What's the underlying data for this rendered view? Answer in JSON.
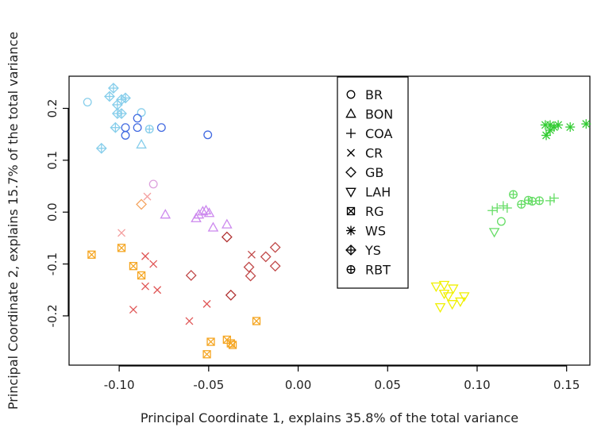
{
  "chart_data": {
    "type": "scatter",
    "title": "",
    "xlabel": "Principal Coordinate 1, explains 35.8% of the total variance",
    "ylabel": "Principal Coordinate 2, explains 15.7%  of the total variance",
    "xlim": [
      -0.128,
      0.163
    ],
    "ylim": [
      -0.295,
      0.262
    ],
    "xticks": [
      -0.1,
      -0.05,
      0.0,
      0.05,
      0.1,
      0.15
    ],
    "xtick_labels": [
      "-0.10",
      "-0.05",
      "0.00",
      "0.05",
      "0.10",
      "0.15"
    ],
    "yticks": [
      -0.2,
      -0.1,
      0.0,
      0.1,
      0.2
    ],
    "ytick_labels": [
      "-0.2",
      "-0.1",
      "0.0",
      "0.1",
      "0.2"
    ],
    "grid": false,
    "legend_position": "top-center",
    "series": [
      {
        "name": "BR",
        "shape": "circle",
        "points": [
          {
            "x": -0.1177,
            "y": 0.212,
            "color": "#87ceeb"
          },
          {
            "x": -0.0876,
            "y": 0.192,
            "color": "#87ceeb"
          },
          {
            "x": -0.0809,
            "y": 0.054,
            "color": "#dda0dd"
          },
          {
            "x": -0.0965,
            "y": 0.163,
            "color": "#4169e1"
          },
          {
            "x": -0.0965,
            "y": 0.148,
            "color": "#4169e1"
          },
          {
            "x": -0.0898,
            "y": 0.181,
            "color": "#4169e1"
          },
          {
            "x": -0.0898,
            "y": 0.163,
            "color": "#4169e1"
          },
          {
            "x": -0.0764,
            "y": 0.163,
            "color": "#4169e1"
          },
          {
            "x": -0.0505,
            "y": 0.149,
            "color": "#4169e1"
          },
          {
            "x": 0.1135,
            "y": -0.018,
            "color": "#66dd66"
          }
        ]
      },
      {
        "name": "BON",
        "shape": "triangle-up",
        "points": [
          {
            "x": -0.0876,
            "y": 0.13,
            "color": "#87ceeb"
          },
          {
            "x": -0.0742,
            "y": -0.005,
            "color": "#cc88ee"
          },
          {
            "x": -0.057,
            "y": -0.012,
            "color": "#cc88ee"
          },
          {
            "x": -0.0555,
            "y": -0.005,
            "color": "#cc88ee"
          },
          {
            "x": -0.0533,
            "y": 0.001,
            "color": "#cc88ee"
          },
          {
            "x": -0.0515,
            "y": 0.003,
            "color": "#cc88ee"
          },
          {
            "x": -0.0497,
            "y": -0.002,
            "color": "#cc88ee"
          },
          {
            "x": -0.0475,
            "y": -0.03,
            "color": "#cc88ee"
          },
          {
            "x": -0.0398,
            "y": -0.024,
            "color": "#cc88ee"
          }
        ]
      },
      {
        "name": "COA",
        "shape": "plus",
        "points": [
          {
            "x": 0.1085,
            "y": 0.003,
            "color": "#66dd66"
          },
          {
            "x": 0.1112,
            "y": 0.008,
            "color": "#66dd66"
          },
          {
            "x": 0.1146,
            "y": 0.012,
            "color": "#66dd66"
          },
          {
            "x": 0.1168,
            "y": 0.008,
            "color": "#66dd66"
          },
          {
            "x": 0.1408,
            "y": 0.022,
            "color": "#66dd66"
          },
          {
            "x": 0.143,
            "y": 0.027,
            "color": "#66dd66"
          }
        ]
      },
      {
        "name": "CR",
        "shape": "cross",
        "points": [
          {
            "x": -0.0987,
            "y": -0.04,
            "color": "#f4a0a0"
          },
          {
            "x": -0.0854,
            "y": -0.085,
            "color": "#e05555"
          },
          {
            "x": -0.0809,
            "y": -0.1,
            "color": "#e05555"
          },
          {
            "x": -0.0854,
            "y": -0.143,
            "color": "#e05555"
          },
          {
            "x": -0.0787,
            "y": -0.15,
            "color": "#e05555"
          },
          {
            "x": -0.0921,
            "y": -0.188,
            "color": "#e05555"
          },
          {
            "x": -0.0608,
            "y": -0.21,
            "color": "#e05555"
          },
          {
            "x": -0.051,
            "y": -0.177,
            "color": "#e05555"
          },
          {
            "x": -0.026,
            "y": -0.082,
            "color": "#c04848"
          },
          {
            "x": -0.0843,
            "y": 0.03,
            "color": "#f4a0a0"
          }
        ]
      },
      {
        "name": "GB",
        "shape": "diamond",
        "points": [
          {
            "x": -0.0876,
            "y": 0.015,
            "color": "#f4a460"
          },
          {
            "x": -0.0598,
            "y": -0.122,
            "color": "#c04848"
          },
          {
            "x": -0.0398,
            "y": -0.048,
            "color": "#b03030"
          },
          {
            "x": -0.0376,
            "y": -0.16,
            "color": "#b03030"
          },
          {
            "x": -0.0275,
            "y": -0.106,
            "color": "#c04848"
          },
          {
            "x": -0.0266,
            "y": -0.123,
            "color": "#c04848"
          },
          {
            "x": -0.0181,
            "y": -0.086,
            "color": "#c04848"
          },
          {
            "x": -0.0128,
            "y": -0.068,
            "color": "#c04848"
          },
          {
            "x": -0.0128,
            "y": -0.104,
            "color": "#c04848"
          }
        ]
      },
      {
        "name": "LAH",
        "shape": "triangle-down",
        "points": [
          {
            "x": 0.0771,
            "y": -0.143,
            "color": "#f0f000"
          },
          {
            "x": 0.0816,
            "y": -0.14,
            "color": "#f0f000"
          },
          {
            "x": 0.0866,
            "y": -0.147,
            "color": "#f0f000"
          },
          {
            "x": 0.0816,
            "y": -0.157,
            "color": "#f0f000"
          },
          {
            "x": 0.0839,
            "y": -0.162,
            "color": "#f0f000"
          },
          {
            "x": 0.0928,
            "y": -0.162,
            "color": "#f0f000"
          },
          {
            "x": 0.0906,
            "y": -0.172,
            "color": "#f0f000"
          },
          {
            "x": 0.0861,
            "y": -0.177,
            "color": "#f0f000"
          },
          {
            "x": 0.0794,
            "y": -0.183,
            "color": "#f0f000"
          },
          {
            "x": 0.1096,
            "y": -0.038,
            "color": "#66dd66"
          }
        ]
      },
      {
        "name": "RG",
        "shape": "boxcross",
        "points": [
          {
            "x": -0.1154,
            "y": -0.082,
            "color": "#f5a623"
          },
          {
            "x": -0.0987,
            "y": -0.069,
            "color": "#f5a623"
          },
          {
            "x": -0.0921,
            "y": -0.104,
            "color": "#f5a623"
          },
          {
            "x": -0.0876,
            "y": -0.122,
            "color": "#f5a623"
          },
          {
            "x": -0.0233,
            "y": -0.21,
            "color": "#f5a623"
          },
          {
            "x": -0.0488,
            "y": -0.25,
            "color": "#f5a623"
          },
          {
            "x": -0.0398,
            "y": -0.246,
            "color": "#f5a623"
          },
          {
            "x": -0.0376,
            "y": -0.253,
            "color": "#f5a623"
          },
          {
            "x": -0.0366,
            "y": -0.256,
            "color": "#f5a623"
          },
          {
            "x": -0.051,
            "y": -0.274,
            "color": "#f5a623"
          }
        ]
      },
      {
        "name": "WS",
        "shape": "asterisk",
        "points": [
          {
            "x": 0.1381,
            "y": 0.168,
            "color": "#33cc33"
          },
          {
            "x": 0.1386,
            "y": 0.148,
            "color": "#33cc33"
          },
          {
            "x": 0.1408,
            "y": 0.158,
            "color": "#33cc33"
          },
          {
            "x": 0.1408,
            "y": 0.168,
            "color": "#33cc33"
          },
          {
            "x": 0.143,
            "y": 0.164,
            "color": "#33cc33"
          },
          {
            "x": 0.1453,
            "y": 0.168,
            "color": "#33cc33"
          },
          {
            "x": 0.152,
            "y": 0.164,
            "color": "#33cc33"
          },
          {
            "x": 0.1609,
            "y": 0.17,
            "color": "#33cc33"
          }
        ]
      },
      {
        "name": "YS",
        "shape": "diamond-plus",
        "points": [
          {
            "x": -0.1032,
            "y": 0.239,
            "color": "#87ceeb"
          },
          {
            "x": -0.1054,
            "y": 0.223,
            "color": "#87ceeb"
          },
          {
            "x": -0.0987,
            "y": 0.217,
            "color": "#87ceeb"
          },
          {
            "x": -0.101,
            "y": 0.207,
            "color": "#87ceeb"
          },
          {
            "x": -0.0965,
            "y": 0.22,
            "color": "#87ceeb"
          },
          {
            "x": -0.101,
            "y": 0.19,
            "color": "#87ceeb"
          },
          {
            "x": -0.0987,
            "y": 0.19,
            "color": "#87ceeb"
          },
          {
            "x": -0.1021,
            "y": 0.163,
            "color": "#87ceeb"
          },
          {
            "x": -0.1099,
            "y": 0.123,
            "color": "#87ceeb"
          }
        ]
      },
      {
        "name": "RBT",
        "shape": "circle-plus",
        "points": [
          {
            "x": -0.0831,
            "y": 0.16,
            "color": "#87ceeb"
          },
          {
            "x": 0.1202,
            "y": 0.034,
            "color": "#66dd66"
          },
          {
            "x": 0.1247,
            "y": 0.015,
            "color": "#66dd66"
          },
          {
            "x": 0.1286,
            "y": 0.023,
            "color": "#66dd66"
          },
          {
            "x": 0.1308,
            "y": 0.021,
            "color": "#66dd66"
          },
          {
            "x": 0.1348,
            "y": 0.022,
            "color": "#66dd66"
          }
        ]
      }
    ]
  }
}
